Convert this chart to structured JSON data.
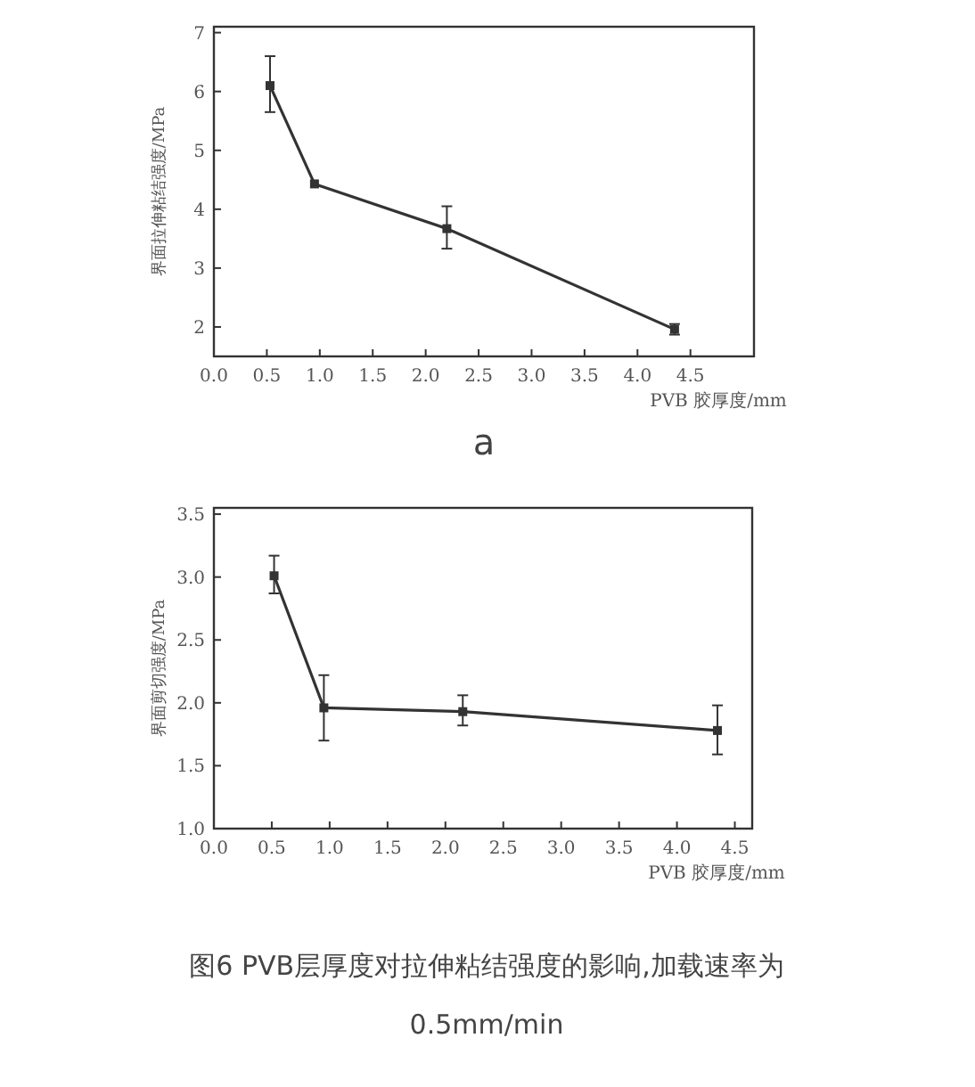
{
  "chart_data": [
    {
      "type": "line",
      "xlabel": "PVB 胶厚度/mm",
      "ylabel": "界面拉伸粘结强度/MPa",
      "annotations": [
        "a"
      ],
      "xlim": [
        0,
        5.1
      ],
      "ylim": [
        1.5,
        7.1
      ],
      "xticks": [
        {
          "value": 0,
          "label": "0.0"
        },
        {
          "value": 0.5,
          "label": "0.5"
        },
        {
          "value": 1,
          "label": "1.0"
        },
        {
          "value": 1.5,
          "label": "1.5"
        },
        {
          "value": 2,
          "label": "2.0"
        },
        {
          "value": 2.5,
          "label": "2.5"
        },
        {
          "value": 3,
          "label": "3.0"
        },
        {
          "value": 3.5,
          "label": "3.5"
        },
        {
          "value": 4,
          "label": "4.0"
        },
        {
          "value": 4.5,
          "label": "4.5"
        }
      ],
      "yticks": [
        2,
        3,
        4,
        5,
        6,
        7
      ],
      "marker": "square",
      "grid": false,
      "series": [
        {
          "color": "#333333",
          "x": [
            0.53,
            0.95,
            2.2,
            4.35
          ],
          "values": [
            6.1,
            4.43,
            3.67,
            1.96
          ],
          "errors": [
            [
              5.65,
              6.6
            ],
            null,
            [
              3.33,
              4.05
            ],
            [
              1.87,
              2.05
            ]
          ]
        }
      ]
    },
    {
      "type": "line",
      "xlabel": "PVB 胶厚度/mm",
      "ylabel": "界面剪切强度/MPa",
      "annotations": [
        "图6 PVB层厚度对拉伸粘结强度的影响,加载速率为 0.5mm/min"
      ],
      "xlim": [
        0,
        4.65
      ],
      "ylim": [
        1.0,
        3.55
      ],
      "xticks": [
        {
          "value": 0,
          "label": "0.0"
        },
        {
          "value": 0.5,
          "label": "0.5"
        },
        {
          "value": 1,
          "label": "1.0"
        },
        {
          "value": 1.5,
          "label": "1.5"
        },
        {
          "value": 2,
          "label": "2.0"
        },
        {
          "value": 2.5,
          "label": "2.5"
        },
        {
          "value": 3,
          "label": "3.0"
        },
        {
          "value": 3.5,
          "label": "3.5"
        },
        {
          "value": 4,
          "label": "4.0"
        },
        {
          "value": 4.5,
          "label": "4.5"
        }
      ],
      "yticks": [
        {
          "value": 1,
          "label": "1.0"
        },
        {
          "value": 1.5,
          "label": "1.5"
        },
        {
          "value": 2,
          "label": "2.0"
        },
        {
          "value": 2.5,
          "label": "2.5"
        },
        {
          "value": 3,
          "label": "3.0"
        },
        {
          "value": 3.5,
          "label": "3.5"
        }
      ],
      "marker": "square",
      "grid": false,
      "series": [
        {
          "color": "#333333",
          "x": [
            0.52,
            0.95,
            2.15,
            4.35
          ],
          "values": [
            3.01,
            1.96,
            1.93,
            1.78
          ],
          "errors": [
            [
              2.87,
              3.17
            ],
            [
              1.7,
              2.22
            ],
            [
              1.82,
              2.06
            ],
            [
              1.59,
              1.98
            ]
          ]
        }
      ]
    }
  ]
}
